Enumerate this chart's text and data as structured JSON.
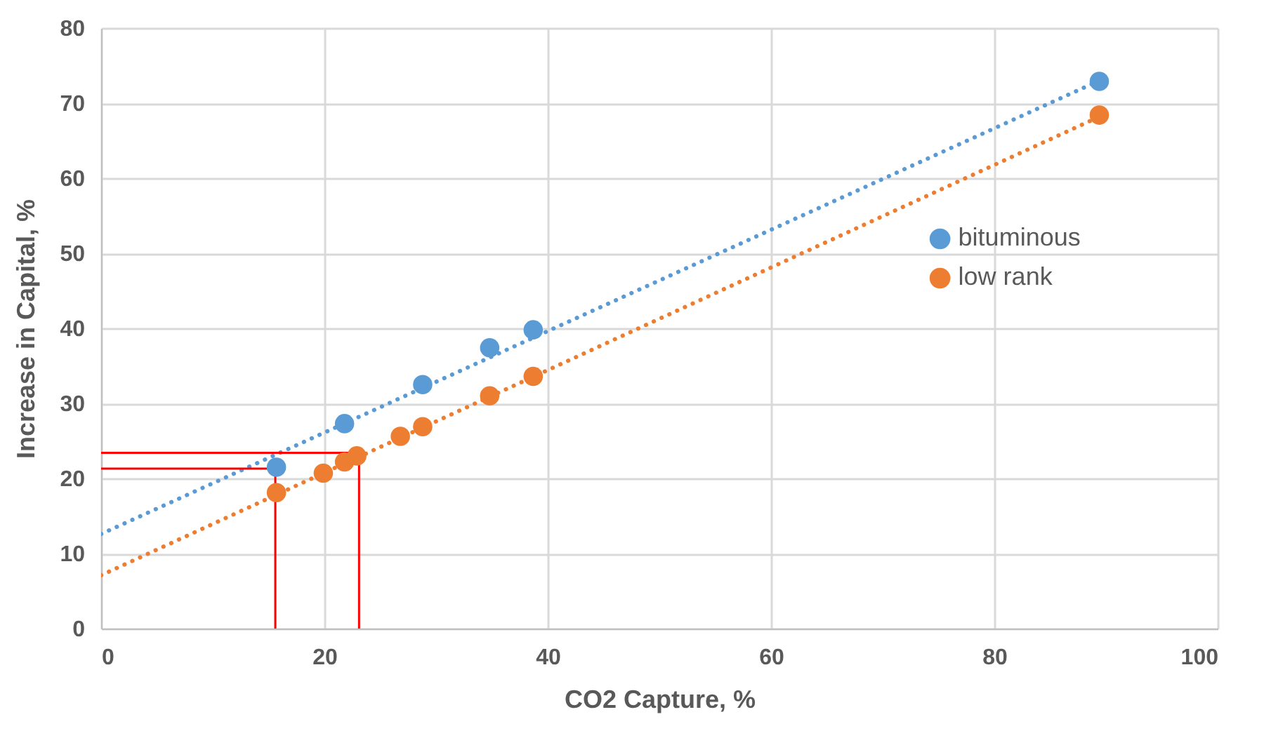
{
  "chart_data": {
    "type": "scatter",
    "xlabel": "CO2 Capture, %",
    "ylabel": "Increase in Capital, %",
    "xlim": [
      0,
      100
    ],
    "xticks": [
      0,
      20,
      40,
      60,
      80,
      100
    ],
    "ylim": [
      0,
      80
    ],
    "yticks": [
      0,
      10,
      20,
      30,
      40,
      50,
      60,
      70,
      80
    ],
    "grid": true,
    "legend": "right",
    "marker": "circle",
    "series": [
      {
        "name": "bituminous",
        "color": "#5b9bd5",
        "x": [
          15.7,
          21.8,
          28.8,
          34.8,
          38.7,
          89.4
        ],
        "values": [
          21.5,
          27.3,
          32.5,
          37.4,
          39.8,
          72.9
        ]
      },
      {
        "name": "low rank",
        "color": "#ed7d31",
        "x": [
          15.7,
          19.9,
          21.8,
          22.9,
          26.8,
          28.8,
          34.8,
          38.7,
          89.4
        ],
        "values": [
          18.1,
          20.7,
          22.2,
          23.0,
          25.6,
          26.9,
          31.0,
          33.6,
          68.4
        ]
      },
      {
        "type": "line",
        "marker": "none",
        "color": "#5b9bd5",
        "line_style": "dotted",
        "x": [
          0,
          90
        ],
        "values": [
          12.6,
          73.4
        ]
      },
      {
        "type": "line",
        "marker": "none",
        "color": "#ed7d31",
        "line_style": "dotted",
        "x": [
          0,
          90
        ],
        "values": [
          7.1,
          68.6
        ]
      },
      {
        "type": "line",
        "marker": "none",
        "color": "#ff0000",
        "line_style": "solid",
        "x": [
          0,
          23.1,
          23.1
        ],
        "values": [
          23.4,
          23.4,
          0
        ]
      },
      {
        "type": "line",
        "marker": "none",
        "color": "#ff0000",
        "line_style": "solid",
        "x": [
          0,
          15.6,
          15.6
        ],
        "values": [
          21.3,
          21.3,
          0
        ]
      }
    ]
  }
}
